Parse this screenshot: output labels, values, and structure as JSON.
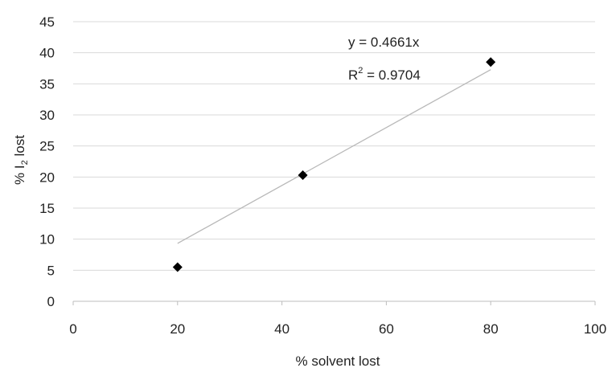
{
  "chart_data": {
    "type": "scatter",
    "xlabel": "% solvent lost",
    "ylabel_prefix": "% I",
    "ylabel_subscript": "2",
    "ylabel_suffix": " lost",
    "xlim": [
      0,
      100
    ],
    "ylim": [
      0,
      45
    ],
    "x_ticks": [
      0,
      20,
      40,
      60,
      80,
      100
    ],
    "y_ticks": [
      0,
      5,
      10,
      15,
      20,
      25,
      30,
      35,
      40,
      45
    ],
    "grid": "horizontal",
    "series": [
      {
        "points": [
          {
            "x": 20,
            "y": 5.5
          },
          {
            "x": 44,
            "y": 20.3
          },
          {
            "x": 80,
            "y": 38.5
          }
        ]
      }
    ],
    "trendline": {
      "slope": 0.4661,
      "x_start": 20,
      "x_end": 80
    },
    "equation_text": "y = 0.4661x",
    "r2_prefix": "R",
    "r2_superscript": "2",
    "r2_value": " = 0.9704"
  }
}
